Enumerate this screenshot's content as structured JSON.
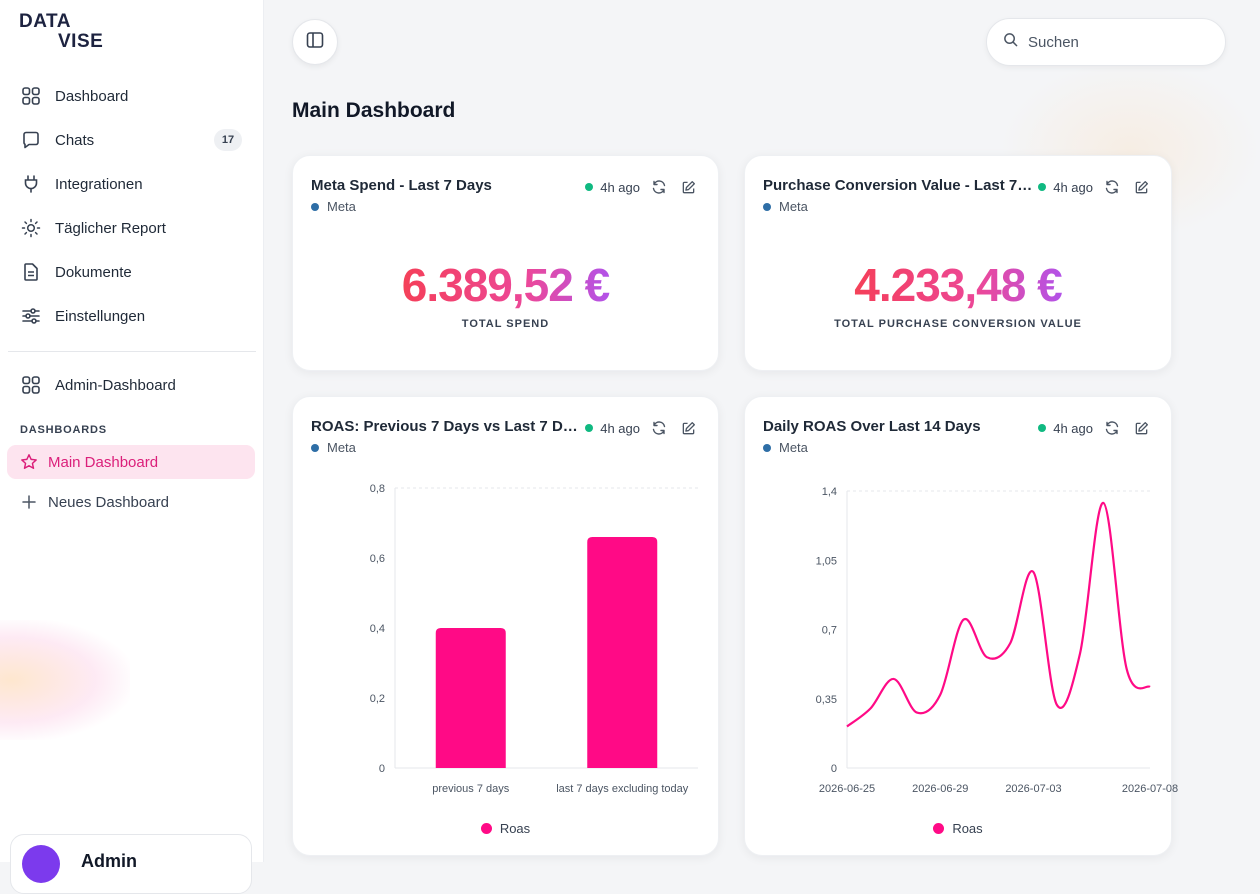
{
  "app": {
    "logo_line1": "DATA",
    "logo_line2": "VISE",
    "accent": "#ff0a86"
  },
  "sidebar": {
    "items": [
      {
        "label": "Dashboard",
        "icon": "grid-icon"
      },
      {
        "label": "Chats",
        "icon": "chat-icon",
        "badge": "17"
      },
      {
        "label": "Integrationen",
        "icon": "plug-icon"
      },
      {
        "label": "Täglicher Report",
        "icon": "sun-icon"
      },
      {
        "label": "Dokumente",
        "icon": "document-icon"
      },
      {
        "label": "Einstellungen",
        "icon": "sliders-icon"
      }
    ],
    "admin_label": "Admin-Dashboard",
    "section_label": "DASHBOARDS",
    "dashboards": [
      {
        "label": "Main Dashboard",
        "icon": "star-icon",
        "active": true
      },
      {
        "label": "Neues Dashboard",
        "icon": "plus-icon"
      }
    ],
    "user": {
      "name": "Admin"
    }
  },
  "header": {
    "search_placeholder": "Suchen"
  },
  "main": {
    "title": "Main Dashboard"
  },
  "cards": [
    {
      "title": "Meta Spend - Last 7 Days",
      "source": "Meta",
      "updated": "4h ago",
      "value": "6.389,52 €",
      "value_label": "TOTAL SPEND"
    },
    {
      "title": "Purchase Conversion Value - Last 7…",
      "source": "Meta",
      "updated": "4h ago",
      "value": "4.233,48 €",
      "value_label": "TOTAL PURCHASE CONVERSION VALUE"
    },
    {
      "title": "ROAS: Previous 7 Days vs Last 7 D…",
      "source": "Meta",
      "updated": "4h ago",
      "legend": "Roas"
    },
    {
      "title": "Daily ROAS Over Last 14 Days",
      "source": "Meta",
      "updated": "4h ago",
      "legend": "Roas"
    }
  ],
  "chart_data": [
    {
      "type": "bar",
      "categories": [
        "previous 7 days",
        "last 7 days excluding today"
      ],
      "series": [
        {
          "name": "Roas",
          "values": [
            0.4,
            0.66
          ]
        }
      ],
      "ylim": [
        0,
        0.8
      ],
      "yticks": [
        "0",
        "0,2",
        "0,4",
        "0,6",
        "0,8"
      ],
      "grid": false,
      "legend": "bottom"
    },
    {
      "type": "line",
      "x": [
        "2026-06-25",
        "2026-06-26",
        "2026-06-27",
        "2026-06-28",
        "2026-06-29",
        "2026-06-30",
        "2026-07-01",
        "2026-07-02",
        "2026-07-03",
        "2026-07-04",
        "2026-07-05",
        "2026-07-06",
        "2026-07-07",
        "2026-07-08"
      ],
      "series": [
        {
          "name": "Roas",
          "values": [
            0.21,
            0.3,
            0.45,
            0.28,
            0.37,
            0.75,
            0.56,
            0.63,
            0.99,
            0.32,
            0.58,
            1.34,
            0.5,
            0.41
          ]
        }
      ],
      "ylim": [
        0,
        1.4
      ],
      "yticks": [
        "0",
        "0,35",
        "0,7",
        "1,05",
        "1,4"
      ],
      "xticks": [
        "2026-06-25",
        "2026-06-29",
        "2026-07-03",
        "2026-07-08"
      ],
      "grid": false,
      "legend": "bottom"
    }
  ]
}
